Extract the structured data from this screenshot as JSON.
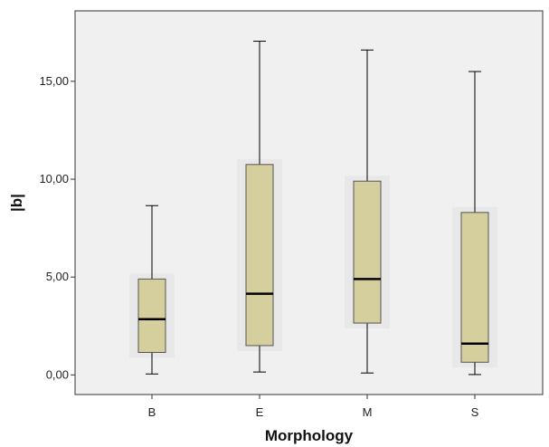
{
  "chart_data": {
    "type": "box",
    "xlabel": "Morphology",
    "ylabel": "|b|",
    "ylim": [
      -1.0,
      18.6
    ],
    "yticks": [
      {
        "value": 0,
        "label": "0,00"
      },
      {
        "value": 5,
        "label": "5,00"
      },
      {
        "value": 10,
        "label": "10,00"
      },
      {
        "value": 15,
        "label": "15,00"
      }
    ],
    "categories": [
      "B",
      "E",
      "M",
      "S"
    ],
    "boxes": [
      {
        "category": "B",
        "whisker_low": 0.05,
        "q1": 1.15,
        "median": 2.85,
        "q3": 4.9,
        "whisker_high": 8.65
      },
      {
        "category": "E",
        "whisker_low": 0.15,
        "q1": 1.5,
        "median": 4.15,
        "q3": 10.75,
        "whisker_high": 17.05
      },
      {
        "category": "M",
        "whisker_low": 0.1,
        "q1": 2.65,
        "median": 4.9,
        "q3": 9.9,
        "whisker_high": 16.6
      },
      {
        "category": "S",
        "whisker_low": 0.02,
        "q1": 0.65,
        "median": 1.6,
        "q3": 8.3,
        "whisker_high": 15.5
      }
    ],
    "grid": false,
    "legend": "none",
    "colors": {
      "plot_background": "#f0f0f0",
      "box_fill": "#d5cf9e",
      "box_stroke": "#555555",
      "line": "#000000",
      "axis": "#333333"
    }
  }
}
